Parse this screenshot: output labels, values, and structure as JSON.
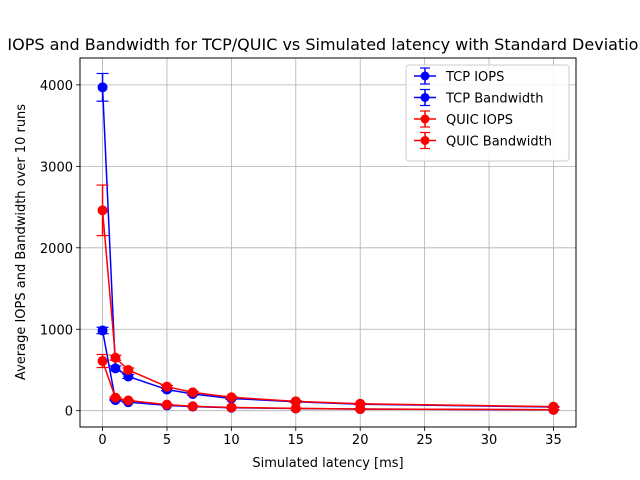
{
  "chart_data": {
    "type": "line",
    "title": "IOPS and Bandwidth for TCP/QUIC vs Simulated latency with Standard Deviation",
    "xlabel": "Simulated latency [ms]",
    "ylabel": "Average IOPS and Bandwidth over 10 runs",
    "xlim": [
      -1.75,
      36.75
    ],
    "ylim": [
      -200,
      4330
    ],
    "xticks": [
      0,
      5,
      10,
      15,
      20,
      25,
      30,
      35
    ],
    "yticks": [
      0,
      1000,
      2000,
      3000,
      4000
    ],
    "grid": true,
    "legend_position": "top-right",
    "x": [
      0,
      1,
      2,
      5,
      7,
      10,
      15,
      20,
      35
    ],
    "series": [
      {
        "name": "TCP IOPS",
        "color": "#0000ff",
        "values": [
          3970,
          520,
          420,
          260,
          205,
          150,
          110,
          80,
          45
        ],
        "errors": [
          170,
          30,
          25,
          15,
          12,
          10,
          8,
          6,
          4
        ]
      },
      {
        "name": "TCP Bandwidth",
        "color": "#0000ff",
        "values": [
          985,
          130,
          105,
          65,
          50,
          37,
          27,
          20,
          11
        ],
        "errors": [
          40,
          8,
          6,
          4,
          3,
          3,
          2,
          2,
          1
        ]
      },
      {
        "name": "QUIC IOPS",
        "color": "#ff0000",
        "values": [
          2460,
          650,
          500,
          295,
          225,
          165,
          115,
          85,
          50
        ],
        "errors": [
          310,
          30,
          25,
          15,
          12,
          10,
          8,
          6,
          4
        ]
      },
      {
        "name": "QUIC Bandwidth",
        "color": "#ff0000",
        "values": [
          610,
          160,
          125,
          75,
          55,
          40,
          28,
          21,
          12
        ],
        "errors": [
          80,
          8,
          6,
          4,
          3,
          3,
          2,
          2,
          1
        ]
      }
    ]
  }
}
